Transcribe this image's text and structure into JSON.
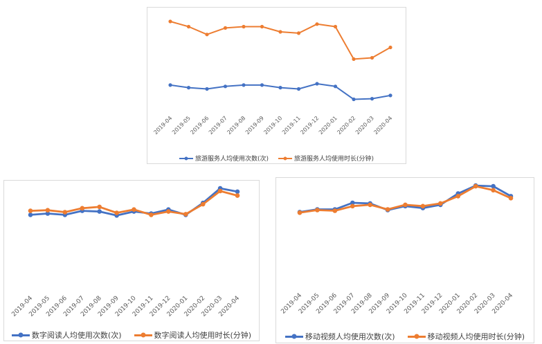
{
  "colors": {
    "blue": "#4472c4",
    "orange": "#ed7d31"
  },
  "chart_data": [
    {
      "type": "line",
      "categories": [
        "2019-04",
        "2019-05",
        "2019-06",
        "2019-07",
        "2019-08",
        "2019-09",
        "2019-10",
        "2019-11",
        "2019-12",
        "2020-01",
        "2020-02",
        "2020-03",
        "2020-04"
      ],
      "series": [
        {
          "name": "旅游服务人均使用次数(次)",
          "color": "#4472c4",
          "values": [
            23,
            21,
            20,
            22,
            23,
            23,
            21,
            20,
            24,
            22,
            12,
            12.5,
            15
          ]
        },
        {
          "name": "旅游服务人均使用时长(分钟)",
          "color": "#ed7d31",
          "values": [
            72,
            68,
            62,
            67,
            68,
            68,
            64,
            63,
            70,
            68,
            43,
            44,
            52
          ]
        }
      ],
      "ylim": [
        0,
        80
      ],
      "grid": false,
      "legend_position": "bottom"
    },
    {
      "type": "line",
      "categories": [
        "2019-04",
        "2019-05",
        "2019-06",
        "2019-07",
        "2019-08",
        "2019-09",
        "2019-10",
        "2019-11",
        "2019-12",
        "2020-01",
        "2020-02",
        "2020-03",
        "2020-04"
      ],
      "series": [
        {
          "name": "数字阅读人均使用次数(次)",
          "color": "#4472c4",
          "values": [
            50,
            51,
            50,
            53,
            52.5,
            49.5,
            52.5,
            51,
            54,
            50,
            59,
            70,
            67.5
          ]
        },
        {
          "name": "数字阅读人均使用时长(分钟)",
          "color": "#ed7d31",
          "values": [
            53,
            53.5,
            52,
            55,
            56,
            51.5,
            54,
            50,
            52.5,
            50.5,
            58,
            68,
            64.5
          ]
        }
      ],
      "ylim": [
        0,
        80
      ],
      "grid": false,
      "legend_position": "bottom"
    },
    {
      "type": "line",
      "categories": [
        "2019-04",
        "2019-05",
        "2019-06",
        "2019-07",
        "2019-08",
        "2019-09",
        "2019-10",
        "2019-11",
        "2019-12",
        "2020-01",
        "2020-02",
        "2020-03",
        "2020-04"
      ],
      "series": [
        {
          "name": "移动视频人均使用次数(次)",
          "color": "#4472c4",
          "values": [
            50,
            52,
            52,
            57,
            56.5,
            51.5,
            54.5,
            53,
            55.5,
            64,
            70,
            69.5,
            62
          ]
        },
        {
          "name": "移动视频人均使用时长(分钟)",
          "color": "#ed7d31",
          "values": [
            49.5,
            51.5,
            51,
            54.5,
            55.5,
            52,
            55.5,
            54.5,
            56.5,
            62,
            69.5,
            66.5,
            60.5
          ]
        }
      ],
      "ylim": [
        0,
        80
      ],
      "grid": false,
      "legend_position": "bottom"
    }
  ]
}
